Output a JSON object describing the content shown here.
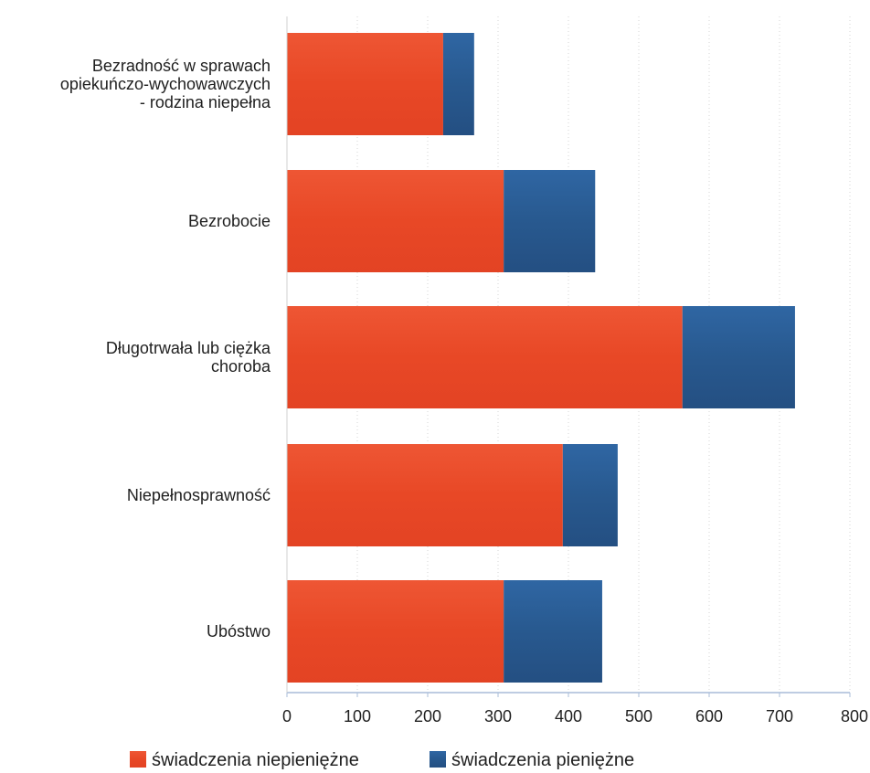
{
  "chart_data": {
    "type": "bar",
    "orientation": "horizontal",
    "stacked": true,
    "categories": [
      [
        "Bezradność w sprawach",
        "opiekuńczo-wychowawczych",
        "- rodzina niepełna"
      ],
      [
        "Bezrobocie"
      ],
      [
        "Długotrwała lub ciężka",
        "choroba"
      ],
      [
        "Niepełnosprawność"
      ],
      [
        "Ubóstwo"
      ]
    ],
    "series": [
      {
        "name": "świadczenia niepieniężne",
        "color": "#ea4a2a",
        "values": [
          222,
          308,
          562,
          392,
          308
        ]
      },
      {
        "name": "świadczenia pieniężne",
        "color": "#2a5c96",
        "values": [
          44,
          130,
          160,
          78,
          140
        ]
      }
    ],
    "xlim": [
      0,
      800
    ],
    "xticks": [
      0,
      100,
      200,
      300,
      400,
      500,
      600,
      700,
      800
    ],
    "xtick_labels": [
      "0",
      "100",
      "200",
      "300",
      "400",
      "500",
      "600",
      "700",
      "800"
    ],
    "grid": "vertical dotted",
    "legend_position": "bottom",
    "xlabel": "",
    "ylabel": "",
    "title": ""
  }
}
